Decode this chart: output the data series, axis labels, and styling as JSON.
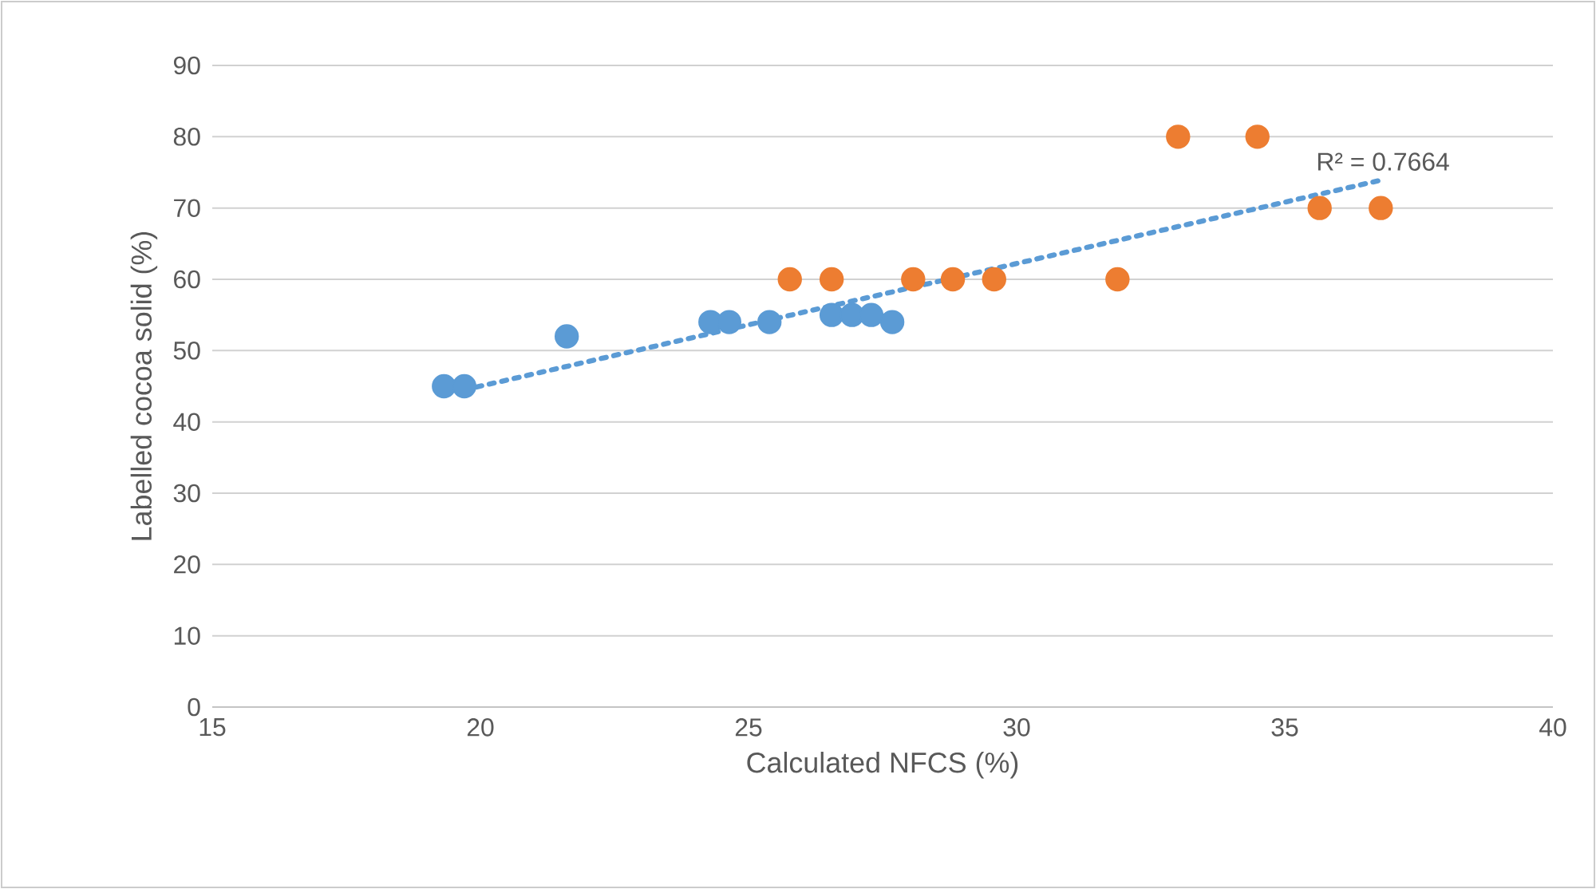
{
  "chart_data": {
    "type": "scatter",
    "xlabel": "Calculated NFCS (%)",
    "ylabel": "Labelled cocoa solid (%)",
    "xlim": [
      15,
      40
    ],
    "xticks": [
      15,
      20,
      25,
      30,
      35,
      40
    ],
    "ylim": [
      0,
      90
    ],
    "yticks": [
      0,
      10,
      20,
      30,
      40,
      50,
      60,
      70,
      80,
      90
    ],
    "grid": "y",
    "annotations": [
      "R² = 0.7664"
    ],
    "series": [
      {
        "color": "#5b9bd5",
        "marker": "circle",
        "x": [
          19.32,
          19.7,
          21.61,
          24.29,
          24.64,
          25.39,
          26.55,
          26.93,
          27.29,
          27.68
        ],
        "values": [
          45,
          45,
          52,
          54,
          54,
          54,
          55,
          55,
          55,
          54
        ]
      },
      {
        "color": "#ed7d31",
        "marker": "circle",
        "x": [
          25.77,
          26.55,
          28.07,
          28.81,
          29.58,
          31.88,
          33.01,
          34.49,
          35.65,
          36.79
        ],
        "values": [
          60,
          60,
          60,
          60,
          60,
          60,
          80,
          80,
          70,
          70
        ]
      },
      {
        "type": "line",
        "color": "#5b9bd5",
        "marker": "none",
        "line_style": "dotted",
        "x": [
          19.7,
          36.79
        ],
        "values": [
          44.5,
          73.9
        ]
      }
    ]
  }
}
